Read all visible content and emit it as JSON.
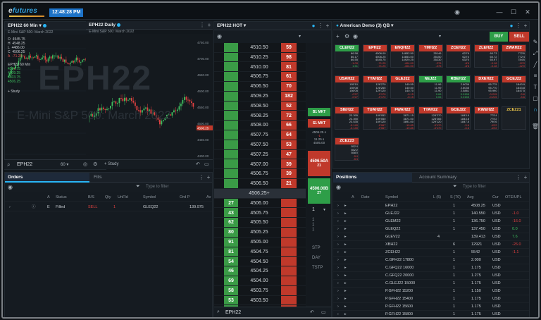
{
  "app": {
    "logo_prefix": "e",
    "logo_rest": "futures",
    "clock": "12:48:28 PM"
  },
  "chart1": {
    "title": "EPH22 60 Min",
    "subtitle": "E-Mini S&P 500: March 2022",
    "ohlc_labels": [
      "O",
      "H",
      "L",
      "C",
      "A"
    ],
    "ohlc_values": [
      "4545.75",
      "4548.25",
      "4486.00",
      "4506.25",
      "-71.25"
    ],
    "indicator_title": "EPH22 60 Min",
    "indicator_values": [
      "4504.75",
      "4509.25",
      "4503.75",
      "4506.25"
    ],
    "study_label": "+ Study",
    "watermark_symbol": "EPH22",
    "watermark_name": "E-Mini S&P 500: March 2022",
    "y_ticks": [
      "4600.00",
      "4570.00",
      "4540.00",
      "4510.00",
      "4480.00"
    ],
    "x_ticks": [
      "12:30",
      "12:00",
      "2-0:09",
      "12:30",
      "12:30",
      "12:00",
      "12:00",
      "12:30"
    ],
    "last_price": "4506.25"
  },
  "chart2": {
    "title": "EPH22 Daily",
    "subtitle": "E-Mini S&P 500: March 2022",
    "y_ticks": [
      "4750.00",
      "4700.00",
      "4650.00",
      "4600.00",
      "4550.00",
      "4500.00",
      "4450.00",
      "4400.00"
    ],
    "x_ticks": [
      "Nov",
      "Dec",
      "Jan"
    ]
  },
  "chart_toolbar": {
    "symbol": "EPH22",
    "interval": "60",
    "study": "+ Study"
  },
  "dom": {
    "title": "EPH22 HOT",
    "rows": [
      {
        "price": "4510.50",
        "bid": "",
        "ask": "59"
      },
      {
        "price": "4510.25",
        "bid": "",
        "ask": "98"
      },
      {
        "price": "4510.00",
        "bid": "",
        "ask": "81"
      },
      {
        "price": "4506.75",
        "bid": "",
        "ask": "61"
      },
      {
        "price": "4506.50",
        "bid": "",
        "ask": "70"
      },
      {
        "price": "4509.25",
        "bid": "",
        "ask": "182"
      },
      {
        "price": "4508.50",
        "bid": "",
        "ask": "52"
      },
      {
        "price": "4508.25",
        "bid": "",
        "ask": "72"
      },
      {
        "price": "4508.00",
        "bid": "",
        "ask": "66"
      },
      {
        "price": "4507.75",
        "bid": "",
        "ask": "64"
      },
      {
        "price": "4507.50",
        "bid": "",
        "ask": "53"
      },
      {
        "price": "4507.25",
        "bid": "",
        "ask": "47"
      },
      {
        "price": "4507.00",
        "bid": "",
        "ask": "39"
      },
      {
        "price": "4506.75",
        "bid": "",
        "ask": "39"
      },
      {
        "price": "4506.50",
        "bid": "",
        "ask": "21"
      },
      {
        "price": "4506.25+",
        "bid": "",
        "ask": ""
      },
      {
        "price": "4506.00",
        "bid": "27",
        "ask": ""
      },
      {
        "price": "4505.75",
        "bid": "43",
        "ask": ""
      },
      {
        "price": "4505.50",
        "bid": "62",
        "ask": ""
      },
      {
        "price": "4505.25",
        "bid": "80",
        "ask": ""
      },
      {
        "price": "4505.00",
        "bid": "91",
        "ask": ""
      },
      {
        "price": "4504.75",
        "bid": "81",
        "ask": ""
      },
      {
        "price": "4504.50",
        "bid": "54",
        "ask": ""
      },
      {
        "price": "4504.25",
        "bid": "46",
        "ask": ""
      },
      {
        "price": "4504.00",
        "bid": "69",
        "ask": ""
      },
      {
        "price": "4503.75",
        "bid": "58",
        "ask": ""
      },
      {
        "price": "4503.50",
        "bid": "53",
        "ask": ""
      }
    ],
    "buy_mkt": "B1 MKT",
    "sell_mkt": "S1 MKT",
    "pos_lines": [
      "4505.25 s",
      "-1",
      "11.25 s",
      "4505.00"
    ],
    "sell_limit": "4506.50A",
    "sell_limit_qty": "21",
    "buy_limit": "4506.00B",
    "buy_limit_qty": "27",
    "qty": "1",
    "side_labels": [
      "STP",
      "DAY",
      "TSTP"
    ],
    "footer_symbol": "EPH22"
  },
  "quote_board": {
    "title": "American Demo (3) QB",
    "buy_label": "BUY",
    "sell_label": "SELL",
    "tiles": [
      {
        "name": "CLEH22",
        "color": "#2e9e48",
        "vals": [
          "86.58",
          "86.17",
          "86.55",
          "-1.09",
          "1.51"
        ]
      },
      {
        "name": "EPH22",
        "color": "#c0392b",
        "vals": [
          "4506.00",
          "4506.25",
          "4545.75",
          "-71.25",
          "-71.25"
        ]
      },
      {
        "name": "ENQH22",
        "color": "#c0392b",
        "vals": [
          "14852.50",
          "14853.00",
          "14929.25",
          "-404.00",
          "-404.00"
        ]
      },
      {
        "name": "YMH22",
        "color": "#c0392b",
        "vals": [
          "35146",
          "35150",
          "35230",
          "-276",
          "-276"
        ]
      },
      {
        "name": "ZCEH22",
        "color": "#c0392b",
        "vals": [
          "622'6",
          "622'4",
          "632'0",
          "-8'6",
          "-8'6"
        ]
      },
      {
        "name": "ZLEH22",
        "color": "#c0392b",
        "vals": [
          "60.73",
          "60.72",
          "60.97",
          "-0.18",
          "-0.18"
        ]
      },
      {
        "name": "ZWAH22",
        "color": "#c0392b",
        "vals": [
          "772'6",
          "772'4",
          "784'6",
          "-12'0",
          "-12'0"
        ]
      },
      {
        "name": "USAH22",
        "color": "#c0392b",
        "vals": [
          "155'10",
          "155'08",
          "156'05",
          "-0'27",
          "-0'27"
        ]
      },
      {
        "name": "TYAH22",
        "color": "#c0392b",
        "vals": [
          "128'270",
          "128'265",
          "129'120",
          "-0'170",
          "-0'170"
        ]
      },
      {
        "name": "GLEJ22",
        "color": "#c0392b",
        "vals": [
          "140.55",
          "140.50",
          "140.70",
          "-0.15",
          "-0.15"
        ]
      },
      {
        "name": "NEJ22",
        "color": "#2e9e48",
        "vals": [
          "11.96",
          "11.99",
          "11.90",
          "0.06",
          "0.06"
        ]
      },
      {
        "name": "RBEH22",
        "color": "#2e9e48",
        "vals": [
          "2.6036",
          "2.6035",
          "2.5881",
          "0.0155",
          "0.0155"
        ]
      },
      {
        "name": "DXEH22",
        "color": "#c0392b",
        "vals": [
          "95.775",
          "95.770",
          "95.990",
          "-0.215",
          "-0.215"
        ]
      },
      {
        "name": "GCEJ22",
        "color": "#c0392b",
        "vals": [
          "1843.9",
          "1843.8",
          "1847.5",
          "-3.6",
          "-3.6"
        ]
      },
      {
        "name": "SIEH22",
        "color": "#c0392b",
        "vals": [
          "23.395",
          "23.390",
          "23.535",
          "-0.140",
          "-0.140"
        ]
      },
      {
        "name": "TUAH22",
        "color": "#c0392b",
        "vals": [
          "109'052",
          "109'050",
          "109'120",
          "-0'067",
          "-0'067"
        ]
      },
      {
        "name": "FWAH22",
        "color": "#c0392b",
        "vals": [
          "3871.15",
          "3871.00",
          "3891.00",
          "-19.85",
          "-19.85"
        ]
      },
      {
        "name": "TYAH22",
        "color": "#c0392b",
        "vals": [
          "128'270",
          "128'265",
          "129'120",
          "-0'170",
          "-0'170"
        ]
      },
      {
        "name": "GCEJ22",
        "color": "#c0392b",
        "vals": [
          "1843.9",
          "1843.8",
          "1847.5",
          "-3.6",
          "-3.6"
        ]
      },
      {
        "name": "KWEH22",
        "color": "#c0392b",
        "vals": [
          "775'4",
          "775'2",
          "790'6",
          "-15'2",
          "-15'2"
        ]
      },
      {
        "name": "ZCEZ21",
        "color": "#1b2026",
        "vals": [
          "",
          "",
          "",
          "",
          ""
        ]
      },
      {
        "name": "ZCEZ23",
        "color": "#c0392b",
        "vals": [
          "552'4",
          "552'2",
          "558'0",
          "-5'4",
          "-5'4"
        ]
      }
    ]
  },
  "orders": {
    "tabs": [
      "Orders",
      "Fills"
    ],
    "filter_placeholder": "Type to filter",
    "headers": [
      "A",
      "Status",
      "B/S",
      "Qty",
      "UnFld",
      "Symbol",
      "Ord P",
      "Av"
    ],
    "row": {
      "a": "E",
      "status": "Filled",
      "bs": "SELL",
      "qty": "1",
      "unfld": "",
      "symbol": "GLEQ22",
      "ordp": "139.975",
      "av": ""
    }
  },
  "positions": {
    "tabs": [
      "Positions",
      "Account Summary"
    ],
    "filter_placeholder": "Type to filter",
    "headers": [
      "A",
      "Date",
      "Symbol",
      "L (5)",
      "S (70)",
      "Avg",
      "Cur",
      "OTE/UPL"
    ],
    "rows": [
      {
        "symbol": "EPH22",
        "l": "",
        "s": "1",
        "avg": "4508.25",
        "cur": "USD",
        "ote": ""
      },
      {
        "symbol": "GLEJ22",
        "l": "",
        "s": "1",
        "avg": "140.550",
        "cur": "USD",
        "ote": "-1.0"
      },
      {
        "symbol": "GLEM22",
        "l": "",
        "s": "1",
        "avg": "136.750",
        "cur": "USD",
        "ote": "-16.0"
      },
      {
        "symbol": "GLEQ22",
        "l": "",
        "s": "1",
        "avg": "137.450",
        "cur": "USD",
        "ote": "0.0"
      },
      {
        "symbol": "GLEV22",
        "l": "4",
        "s": "",
        "avg": "139.413",
        "cur": "USD",
        "ote": "7.6"
      },
      {
        "symbol": "XBH22",
        "l": "",
        "s": "6",
        "avg": "12921",
        "cur": "USD",
        "ote": "-26.0"
      },
      {
        "symbol": "ZCEH22",
        "l": "",
        "s": "1",
        "avg": "5542",
        "cur": "USD",
        "ote": "-1.1"
      },
      {
        "symbol": "C.GFH22 17800",
        "l": "",
        "s": "1",
        "avg": "2.000",
        "cur": "USD",
        "ote": ""
      },
      {
        "symbol": "C.GFQ22 16000",
        "l": "",
        "s": "1",
        "avg": "1.175",
        "cur": "USD",
        "ote": ""
      },
      {
        "symbol": "C.GFQ22 20000",
        "l": "",
        "s": "1",
        "avg": "1.275",
        "cur": "USD",
        "ote": ""
      },
      {
        "symbol": "C.GLEJ22 15000",
        "l": "",
        "s": "1",
        "avg": "1.175",
        "cur": "USD",
        "ote": ""
      },
      {
        "symbol": "P.GFH22 15200",
        "l": "",
        "s": "1",
        "avg": "1.150",
        "cur": "USD",
        "ote": ""
      },
      {
        "symbol": "P.GFH22 15400",
        "l": "",
        "s": "1",
        "avg": "1.175",
        "cur": "USD",
        "ote": ""
      },
      {
        "symbol": "P.GFH22 15600",
        "l": "",
        "s": "1",
        "avg": "1.175",
        "cur": "USD",
        "ote": ""
      },
      {
        "symbol": "P.GFH22 15800",
        "l": "",
        "s": "1",
        "avg": "1.175",
        "cur": "USD",
        "ote": ""
      }
    ]
  }
}
